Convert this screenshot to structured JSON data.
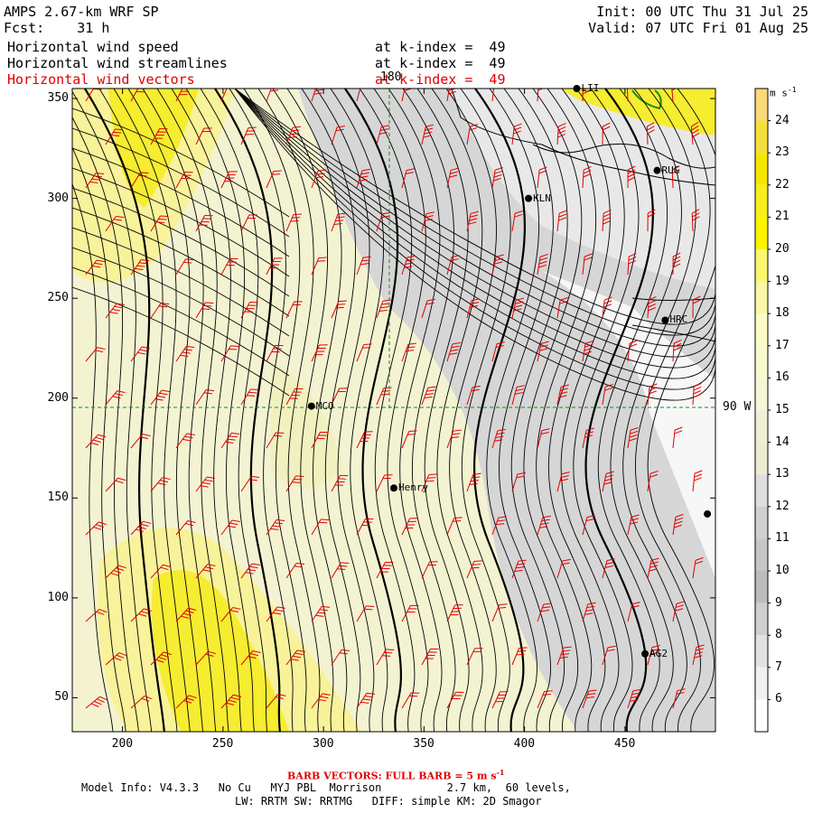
{
  "header": {
    "model": "AMPS 2.67-km WRF SP",
    "fcst_label": "Fcst:",
    "fcst_value": "31 h",
    "init": "Init: 00 UTC Thu 31 Jul 25",
    "valid": "Valid: 07 UTC Fri 01 Aug 25",
    "fields": [
      {
        "name": "Horizontal wind speed",
        "level": "at k-index =  49",
        "color": "#000000"
      },
      {
        "name": "Horizontal wind streamlines",
        "level": "at k-index =  49",
        "color": "#000000"
      },
      {
        "name": "Horizontal wind vectors",
        "level": "at k-index =  49",
        "color": "#e00000"
      }
    ]
  },
  "axes": {
    "x_ticks": [
      "200",
      "250",
      "300",
      "350",
      "400",
      "450"
    ],
    "y_ticks": [
      "350",
      "300",
      "250",
      "200",
      "150",
      "100",
      "50"
    ],
    "x_range": [
      175,
      495
    ],
    "y_range": [
      33,
      355
    ]
  },
  "grid_labels": {
    "meridian": "180",
    "meridian_right": "90 W"
  },
  "stations": [
    {
      "label": "LII",
      "x": 426,
      "y": 355
    },
    {
      "label": "RUG",
      "x": 466,
      "y": 314
    },
    {
      "label": "KLN",
      "x": 402,
      "y": 300
    },
    {
      "label": "HRC",
      "x": 470,
      "y": 239
    },
    {
      "label": "MCO",
      "x": 294,
      "y": 196
    },
    {
      "label": "Henry",
      "x": 335,
      "y": 155
    },
    {
      "label": "AG2",
      "x": 460,
      "y": 72
    },
    {
      "label": "",
      "x": 491,
      "y": 142
    }
  ],
  "colorbar": {
    "unit": "m s",
    "unit_exp": "-1",
    "levels": [
      "24",
      "23",
      "22",
      "21",
      "20",
      "19",
      "18",
      "17",
      "16",
      "15",
      "14",
      "13",
      "12",
      "11",
      "10",
      "9",
      "8",
      "7",
      "6"
    ],
    "colors": [
      "#fbd978",
      "#f6df3a",
      "#f5e600",
      "#f7ee1d",
      "#fbf300",
      "#fbf66f",
      "#f9f6a5",
      "#fbfbc6",
      "#f9f9cf",
      "#f6f6d6",
      "#efefd7",
      "#ececd4",
      "#dedede",
      "#d0d0d0",
      "#c6c6c6",
      "#bcbcbc",
      "#cfcfcf",
      "#e2e2e2",
      "#f1f1f1",
      "#ffffff"
    ]
  },
  "footer": {
    "barb_note": "BARB VECTORS: FULL BARB = 5 m s",
    "barb_exp": "-1",
    "line1": "Model Info: V4.3.3   No Cu   MYJ PBL  Morrison          2.7 km,  60 levels,",
    "line2": "LW: RRTM SW: RRTMG   DIFF: simple KM: 2D Smagor"
  },
  "style": {
    "streamline_color": "#000000",
    "barb_color": "#e00000",
    "grid_color": "#1a8a1a",
    "land_outline": "#000000"
  }
}
